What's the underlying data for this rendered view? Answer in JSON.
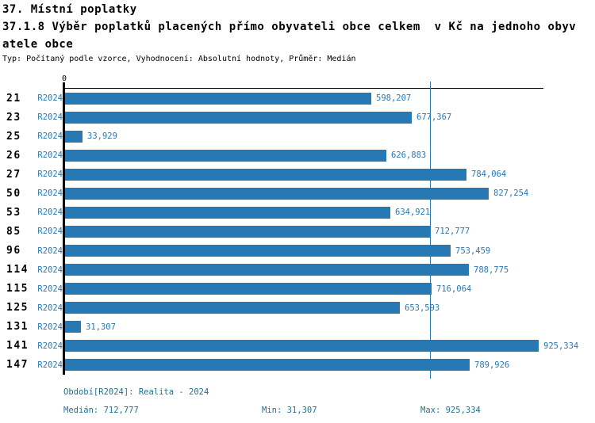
{
  "header": {
    "title": "37. Místní poplatky",
    "subtitle_line1": "37.1.8 Výběr poplatků placených přímo obyvateli obce celkem  v Kč na jednoho obyv",
    "subtitle_line2": "atele obce",
    "meta": "Typ: Počítaný podle vzorce, Vyhodnocení: Absolutní hodnoty, Průměr: Medián"
  },
  "chart_data": {
    "type": "bar",
    "orientation": "horizontal",
    "title": "37.1.8 Výběr poplatků placených přímo obyvateli obce celkem v Kč na jednoho obyvatele obce",
    "series_label": "R2024",
    "categories": [
      "21",
      "23",
      "25",
      "26",
      "27",
      "50",
      "53",
      "85",
      "96",
      "114",
      "115",
      "125",
      "131",
      "141",
      "147"
    ],
    "values": [
      598207,
      677367,
      33929,
      626883,
      784064,
      827254,
      634921,
      712777,
      753459,
      788775,
      716064,
      653593,
      31307,
      925334,
      789926
    ],
    "value_labels": [
      "598,207",
      "677,367",
      "33,929",
      "626,883",
      "784,064",
      "827,254",
      "634,921",
      "712,777",
      "753,459",
      "788,775",
      "716,064",
      "653,593",
      "31,307",
      "925,334",
      "789,926"
    ],
    "axis": {
      "zero_label": "0",
      "xmin": 0,
      "xmax": 934000,
      "median_line_value": 712777
    },
    "colors": {
      "bar": "#2878b4",
      "series_label_text": "#2878b4",
      "value_label_text": "#2878b4",
      "median_line": "#2878b4",
      "axis": "#000000",
      "footer_text": "#1d7390"
    },
    "grid": false,
    "legend_position": "none"
  },
  "footer": {
    "period": "Období[R2024]: Realita - 2024",
    "median": "Medián: 712,777",
    "min": "Min: 31,307",
    "max": "Max: 925,334"
  }
}
